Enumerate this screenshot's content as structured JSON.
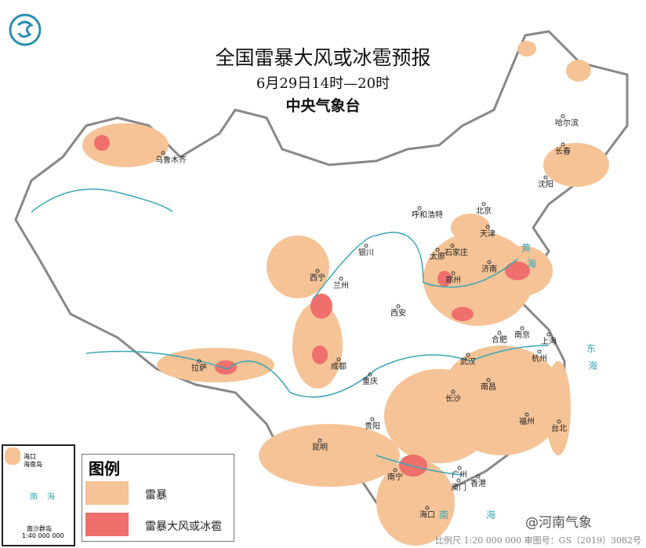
{
  "title": "全国雷暴大风或冰雹预报",
  "time_range": "6月29日14时—20时",
  "issuer": "中央气象台",
  "legend": {
    "heading": "图例",
    "items": [
      {
        "label": "雷暴",
        "color": "#f5c396"
      },
      {
        "label": "雷暴大风或冰雹",
        "color": "#ef6f6c"
      }
    ]
  },
  "cities": [
    "乌鲁木齐",
    "哈尔滨",
    "长春",
    "沈阳",
    "呼和浩特",
    "北京",
    "天津",
    "银川",
    "太原",
    "石家庄",
    "济南",
    "西宁",
    "兰州",
    "郑州",
    "西安",
    "合肥",
    "南京",
    "上海",
    "杭州",
    "武汉",
    "成都",
    "重庆",
    "拉萨",
    "长沙",
    "南昌",
    "贵阳",
    "福州",
    "台北",
    "昆明",
    "南宁",
    "广州",
    "香港",
    "澳门",
    "海口"
  ],
  "seas": [
    "黄",
    "海",
    "东",
    "海",
    "南",
    "海"
  ],
  "inset": {
    "labels": [
      "海口",
      "海南岛",
      "南",
      "海",
      "南沙群岛"
    ],
    "scale": "1:40 000 000"
  },
  "footer": "比例尺 1:20 000 000   审图号：GS（2019）3082号",
  "watermark": "@河南气象"
}
